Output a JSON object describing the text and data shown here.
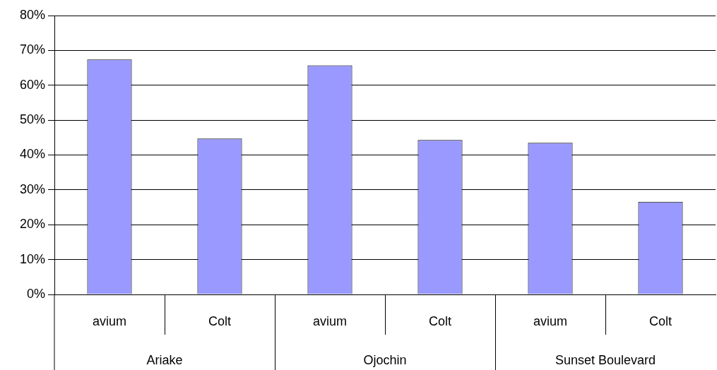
{
  "chart_data": {
    "type": "bar",
    "categories": [
      "avium",
      "Colt",
      "avium",
      "Colt",
      "avium",
      "Colt"
    ],
    "values": [
      67.4,
      44.7,
      65.7,
      44.3,
      43.5,
      26.6
    ],
    "color": "#9999ff",
    "ylim": [
      0,
      80
    ],
    "yticks": [
      {
        "value": 0,
        "label": "0%"
      },
      {
        "value": 10,
        "label": "10%"
      },
      {
        "value": 20,
        "label": "20%"
      },
      {
        "value": 30,
        "label": "30%"
      },
      {
        "value": 40,
        "label": "40%"
      },
      {
        "value": 50,
        "label": "50%"
      },
      {
        "value": 60,
        "label": "60%"
      },
      {
        "value": 70,
        "label": "70%"
      },
      {
        "value": 80,
        "label": "80%"
      }
    ],
    "grid": "y",
    "legend": false,
    "annotations": [
      "Ariake",
      "Ojochin",
      "Sunset Boulevard"
    ]
  }
}
